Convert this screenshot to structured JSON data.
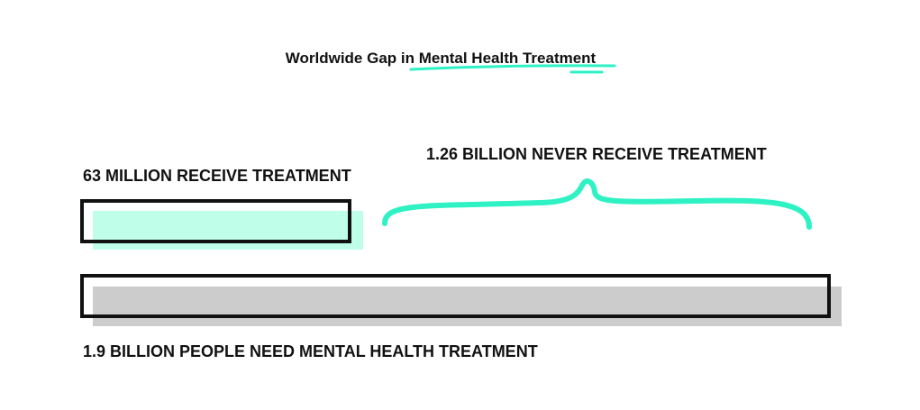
{
  "title": {
    "prefix": "Worldwide Gap in ",
    "highlight": "Mental Health Treatment"
  },
  "labels": {
    "received": "63 MILLION RECEIVE TREATMENT",
    "never": "1.26 BILLION NEVER RECEIVE TREATMENT",
    "need": "1.9 BILLION PEOPLE NEED MENTAL HEALTH TREATMENT"
  },
  "colors": {
    "accent": "#2ef2c4",
    "received_fill": "#bfffe9",
    "need_fill": "#cccccc",
    "outline": "#111111"
  },
  "chart_data": {
    "type": "bar",
    "orientation": "horizontal",
    "units": "people",
    "series": [
      {
        "label": "63 MILLION RECEIVE TREATMENT",
        "value": 63000000
      },
      {
        "label": "1.26 BILLION NEVER RECEIVE TREATMENT",
        "value": 1260000000
      },
      {
        "label": "1.9 BILLION PEOPLE NEED MENTAL HEALTH TREATMENT",
        "value": 1900000000
      }
    ]
  }
}
